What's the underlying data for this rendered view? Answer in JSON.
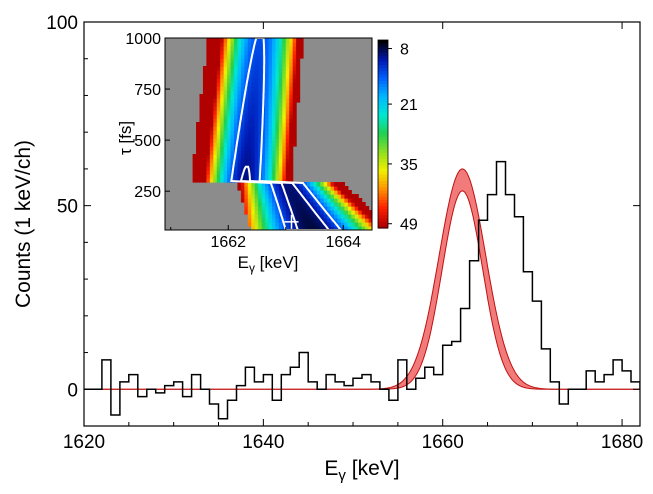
{
  "chart_data": [
    {
      "type": "line",
      "role": "main",
      "xlabel": "E",
      "xlabel_sub": "γ",
      "xlabel_unit": " [keV]",
      "ylabel": "Counts (1 keV/ch)",
      "xlim": [
        1620,
        1682
      ],
      "ylim": [
        -10,
        100
      ],
      "x_ticks": [
        "1620",
        "1640",
        "1660",
        "1680"
      ],
      "x_tick_values": [
        1620,
        1640,
        1660,
        1680
      ],
      "y_ticks": [
        "0",
        "50",
        "100"
      ],
      "y_tick_values": [
        0,
        50,
        100
      ],
      "colors": {
        "histogram": "#000000",
        "band": "#f06c6c",
        "band_edge": "#c01010"
      },
      "series": [
        {
          "kind": "histogram",
          "x_start": 1620,
          "bin_width": 1,
          "values": [
            0,
            0,
            8,
            -7,
            2,
            4,
            -2,
            0,
            -1,
            1,
            2,
            -2,
            4,
            0,
            -4,
            -8,
            -3,
            1,
            6,
            2,
            4,
            -3,
            4,
            6,
            10,
            2,
            0,
            4,
            2,
            1,
            3,
            4,
            2,
            0,
            -3,
            8,
            0,
            3,
            6,
            4,
            12,
            13,
            22,
            35,
            46,
            53,
            62,
            53,
            47,
            32,
            24,
            11,
            2,
            -4,
            0,
            0,
            5,
            2,
            4,
            8,
            5,
            2,
            0
          ]
        },
        {
          "kind": "band",
          "baseline": 0,
          "centroid": 1662.2,
          "upper_amplitude": 60,
          "upper_sigma": 2.6,
          "lower_amplitude": 54,
          "lower_sigma": 2.25
        }
      ]
    },
    {
      "type": "heatmap",
      "role": "inset",
      "xlabel": "E",
      "xlabel_sub": "γ",
      "xlabel_unit": " [keV]",
      "ylabel": "τ [fs]",
      "xlim": [
        1660.9,
        1664.5
      ],
      "ylim": [
        60,
        1000
      ],
      "x_ticks": [
        "1662",
        "1664"
      ],
      "x_tick_values": [
        1662,
        1664
      ],
      "y_ticks": [
        "250",
        "500",
        "750",
        "1000"
      ],
      "y_tick_values": [
        250,
        500,
        750,
        1000
      ],
      "colorbar_ticks": [
        "8",
        "21",
        "35",
        "49"
      ],
      "colorbar_tick_values": [
        8,
        21,
        35,
        49
      ],
      "colorbar_range": [
        6,
        50
      ],
      "masked_color": "#8c8c8c",
      "best_fit": {
        "x": 1663.1,
        "y": 100
      },
      "colorscale": [
        "#000000",
        "#0018b0",
        "#0060ff",
        "#00b8ff",
        "#00e8d0",
        "#20d050",
        "#90e020",
        "#f0f000",
        "#ff9000",
        "#ff2000",
        "#b00000"
      ]
    }
  ]
}
